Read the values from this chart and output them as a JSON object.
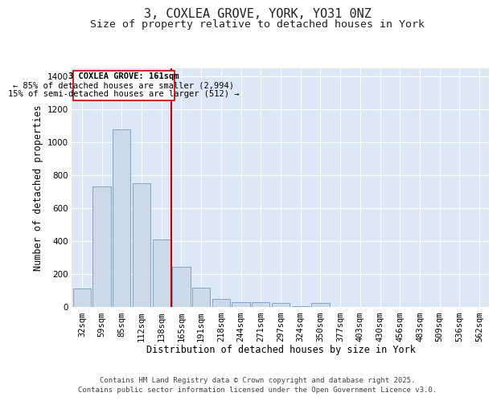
{
  "title_line1": "3, COXLEA GROVE, YORK, YO31 0NZ",
  "title_line2": "Size of property relative to detached houses in York",
  "xlabel": "Distribution of detached houses by size in York",
  "ylabel": "Number of detached properties",
  "categories": [
    "32sqm",
    "59sqm",
    "85sqm",
    "112sqm",
    "138sqm",
    "165sqm",
    "191sqm",
    "218sqm",
    "244sqm",
    "271sqm",
    "297sqm",
    "324sqm",
    "350sqm",
    "377sqm",
    "403sqm",
    "430sqm",
    "456sqm",
    "483sqm",
    "509sqm",
    "536sqm",
    "562sqm"
  ],
  "values": [
    110,
    730,
    1075,
    750,
    410,
    245,
    115,
    50,
    30,
    30,
    25,
    5,
    25,
    0,
    0,
    0,
    0,
    0,
    0,
    0,
    0
  ],
  "bar_color": "#ccd9e8",
  "bar_edge_color": "#7799bb",
  "vline_index": 5,
  "annotation_line1": "3 COXLEA GROVE: 161sqm",
  "annotation_line2": "← 85% of detached houses are smaller (2,994)",
  "annotation_line3": "15% of semi-detached houses are larger (512) →",
  "annotation_box_color": "#cc0000",
  "vline_color": "#cc0000",
  "ylim": [
    0,
    1450
  ],
  "yticks": [
    0,
    200,
    400,
    600,
    800,
    1000,
    1200,
    1400
  ],
  "fig_bg_color": "#ffffff",
  "plot_bg_color": "#dce8f5",
  "footer_line1": "Contains HM Land Registry data © Crown copyright and database right 2025.",
  "footer_line2": "Contains public sector information licensed under the Open Government Licence v3.0.",
  "title_fontsize": 11,
  "subtitle_fontsize": 9.5,
  "axis_label_fontsize": 8.5,
  "tick_fontsize": 7.5,
  "annotation_fontsize": 7.5,
  "footer_fontsize": 6.5
}
